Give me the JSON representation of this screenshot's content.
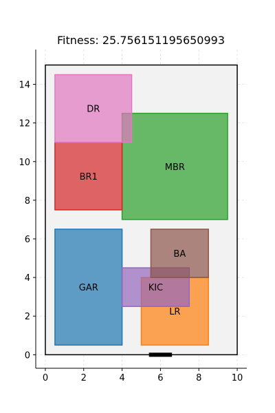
{
  "chart_data": {
    "type": "floor-plan",
    "title": "Fitness: 25.756151195650993",
    "xlim": [
      -0.5,
      10.5
    ],
    "ylim": [
      -0.7,
      15.8
    ],
    "xticks": [
      0,
      2,
      4,
      6,
      8,
      10
    ],
    "yticks": [
      0,
      2,
      4,
      6,
      8,
      10,
      12,
      14
    ],
    "grid": true,
    "plot_boundary": {
      "x0": 0,
      "y0": 0,
      "x1": 10,
      "y1": 15
    },
    "entrance": {
      "x0": 5.4,
      "x1": 6.6,
      "y": 0
    },
    "rooms": [
      {
        "name": "GAR",
        "x0": 0.5,
        "y0": 0.5,
        "x1": 4.0,
        "y1": 6.5,
        "color": "#1f77b4"
      },
      {
        "name": "LR",
        "x0": 5.0,
        "y0": 0.5,
        "x1": 8.5,
        "y1": 4.0,
        "color": "#ff7f0e"
      },
      {
        "name": "MBR",
        "x0": 4.0,
        "y0": 7.0,
        "x1": 9.5,
        "y1": 12.5,
        "color": "#2ca02c"
      },
      {
        "name": "BR1",
        "x0": 0.5,
        "y0": 7.5,
        "x1": 4.0,
        "y1": 11.0,
        "color": "#d62728"
      },
      {
        "name": "KIC",
        "x0": 4.0,
        "y0": 2.5,
        "x1": 7.5,
        "y1": 4.5,
        "color": "#9467bd"
      },
      {
        "name": "BA",
        "x0": 5.5,
        "y0": 4.0,
        "x1": 8.5,
        "y1": 6.5,
        "color": "#8c564b"
      },
      {
        "name": "DR",
        "x0": 0.5,
        "y0": 11.0,
        "x1": 4.5,
        "y1": 14.5,
        "color": "#e377c2"
      }
    ]
  }
}
